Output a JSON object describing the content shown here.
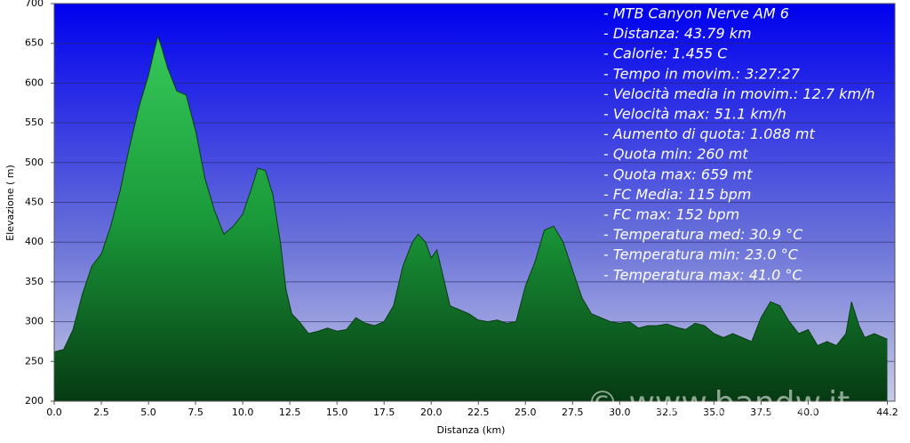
{
  "chart_data": {
    "type": "area",
    "x_label": "Distanza   (km)",
    "y_label": "Elevazione ( m)",
    "xlim": [
      0,
      44.6
    ],
    "ylim": [
      200,
      700
    ],
    "xticks": [
      {
        "value": 0,
        "label": "0.0"
      },
      2.5,
      {
        "value": 5,
        "label": "5.0"
      },
      7.5,
      {
        "value": 10,
        "label": "10.0"
      },
      12.5,
      {
        "value": 15,
        "label": "15.0"
      },
      17.5,
      {
        "value": 20,
        "label": "20.0"
      },
      22.5,
      {
        "value": 25,
        "label": "25.0"
      },
      27.5,
      {
        "value": 30,
        "label": "30.0"
      },
      32.5,
      {
        "value": 35,
        "label": "35.0"
      },
      37.5,
      {
        "value": 40,
        "label": "40.0"
      },
      44.2
    ],
    "yticks": [
      200,
      250,
      300,
      350,
      400,
      450,
      500,
      550,
      600,
      650,
      700
    ],
    "grid": true,
    "color": "#1a9a3a",
    "series": [
      {
        "x": [
          0,
          0.5,
          1.0,
          1.5,
          2.0,
          2.5,
          3.0,
          3.5,
          4.0,
          4.5,
          5.0,
          5.3,
          5.5,
          5.7,
          6.0,
          6.5,
          7.0,
          7.5,
          8.0,
          8.5,
          9.0,
          9.5,
          10.0,
          10.5,
          10.8,
          11.2,
          11.6,
          12.0,
          12.3,
          12.6,
          13.0,
          13.5,
          14.0,
          14.5,
          15.0,
          15.5,
          16.0,
          16.5,
          17.0,
          17.5,
          18.0,
          18.5,
          19.0,
          19.3,
          19.7,
          20.0,
          20.3,
          20.7,
          21.0,
          21.5,
          22.0,
          22.5,
          23.0,
          23.5,
          24.0,
          24.5,
          25.0,
          25.5,
          26.0,
          26.5,
          27.0,
          27.5,
          28.0,
          28.5,
          29.0,
          29.5,
          30.0,
          30.5,
          31.0,
          31.5,
          32.0,
          32.5,
          33.0,
          33.5,
          34.0,
          34.5,
          35.0,
          35.5,
          36.0,
          36.5,
          37.0,
          37.5,
          38.0,
          38.5,
          39.0,
          39.5,
          40.0,
          40.5,
          41.0,
          41.5,
          42.0,
          42.3,
          42.7,
          43.0,
          43.5,
          44.2
        ],
        "values": [
          262,
          265,
          290,
          335,
          370,
          385,
          420,
          465,
          520,
          570,
          610,
          640,
          659,
          645,
          620,
          590,
          585,
          540,
          480,
          440,
          410,
          420,
          435,
          470,
          493,
          490,
          460,
          400,
          340,
          310,
          300,
          285,
          288,
          292,
          288,
          290,
          305,
          298,
          295,
          300,
          320,
          370,
          400,
          410,
          400,
          380,
          390,
          350,
          320,
          315,
          310,
          302,
          300,
          302,
          298,
          300,
          345,
          375,
          415,
          420,
          400,
          365,
          330,
          310,
          305,
          300,
          298,
          300,
          292,
          295,
          295,
          297,
          293,
          290,
          298,
          295,
          285,
          280,
          285,
          280,
          275,
          305,
          325,
          320,
          300,
          285,
          290,
          270,
          275,
          270,
          285,
          325,
          295,
          280,
          285,
          278
        ]
      }
    ],
    "info": [
      "- MTB Canyon Nerve AM 6",
      "- Distanza: 43.79 km",
      "- Calorie: 1.455 C",
      "- Tempo in movim.: 3:27:27",
      "- Velocità media in movim.: 12.7 km/h",
      "- Velocità max: 51.1 km/h",
      "- Aumento di quota: 1.088 mt",
      "- Quota min: 260 mt",
      "- Quota max: 659 mt",
      "- FC Media: 115 bpm",
      "- FC max: 152 bpm",
      "- Temperatura med: 30.9 °C",
      "- Temperatura min: 23.0 °C",
      "- Temperatura max: 41.0 °C"
    ],
    "watermark": "© www.bandw.it"
  }
}
